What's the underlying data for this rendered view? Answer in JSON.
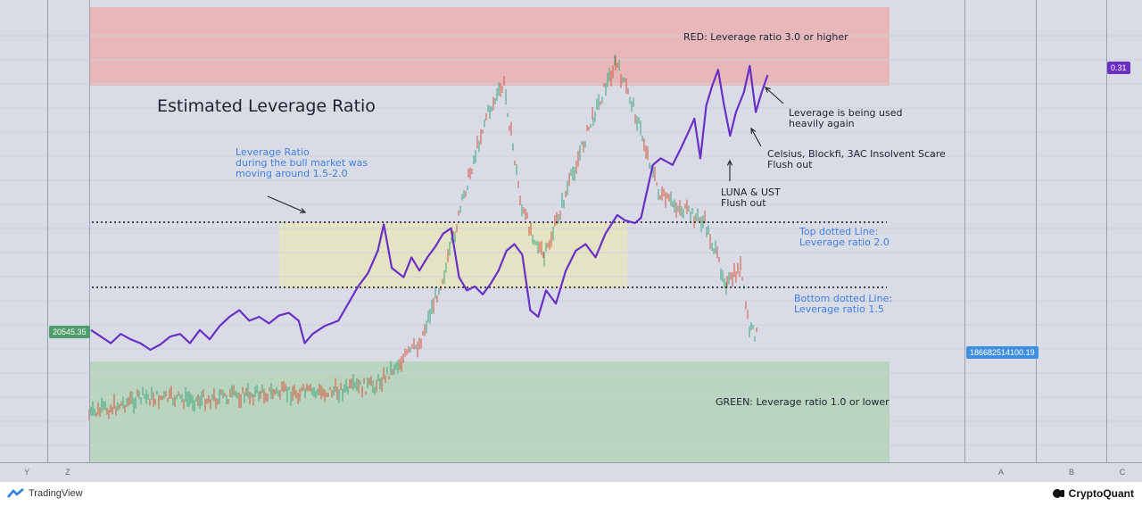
{
  "chart_data": {
    "type": "line",
    "title": "Estimated Leverage Ratio",
    "series": [
      {
        "color": "#6a2fc4",
        "points": [
          [
            0,
            1.15
          ],
          [
            5,
            1.1
          ],
          [
            10,
            1.05
          ],
          [
            15,
            1.12
          ],
          [
            20,
            1.08
          ],
          [
            25,
            1.05
          ],
          [
            30,
            1.0
          ],
          [
            35,
            1.04
          ],
          [
            40,
            1.1
          ],
          [
            45,
            1.12
          ],
          [
            50,
            1.05
          ],
          [
            55,
            1.15
          ],
          [
            60,
            1.08
          ],
          [
            65,
            1.18
          ],
          [
            70,
            1.25
          ],
          [
            75,
            1.3
          ],
          [
            80,
            1.22
          ],
          [
            85,
            1.25
          ],
          [
            90,
            1.2
          ],
          [
            95,
            1.26
          ],
          [
            100,
            1.28
          ],
          [
            105,
            1.22
          ],
          [
            108,
            1.05
          ],
          [
            112,
            1.12
          ],
          [
            118,
            1.18
          ],
          [
            125,
            1.22
          ],
          [
            130,
            1.35
          ],
          [
            135,
            1.48
          ],
          [
            140,
            1.58
          ],
          [
            145,
            1.75
          ],
          [
            148,
            1.95
          ],
          [
            152,
            1.62
          ],
          [
            158,
            1.55
          ],
          [
            162,
            1.7
          ],
          [
            166,
            1.6
          ],
          [
            170,
            1.7
          ],
          [
            174,
            1.78
          ],
          [
            178,
            1.88
          ],
          [
            182,
            1.92
          ],
          [
            186,
            1.55
          ],
          [
            190,
            1.45
          ],
          [
            194,
            1.48
          ],
          [
            198,
            1.42
          ],
          [
            202,
            1.5
          ],
          [
            206,
            1.6
          ],
          [
            210,
            1.75
          ],
          [
            214,
            1.8
          ],
          [
            218,
            1.72
          ],
          [
            222,
            1.3
          ],
          [
            226,
            1.25
          ],
          [
            230,
            1.45
          ],
          [
            235,
            1.35
          ],
          [
            240,
            1.6
          ],
          [
            245,
            1.75
          ],
          [
            250,
            1.8
          ],
          [
            255,
            1.7
          ],
          [
            260,
            1.88
          ],
          [
            266,
            2.02
          ],
          [
            270,
            1.98
          ],
          [
            275,
            1.96
          ],
          [
            278,
            2.0
          ],
          [
            284,
            2.4
          ],
          [
            288,
            2.45
          ],
          [
            294,
            2.4
          ],
          [
            298,
            2.52
          ],
          [
            302,
            2.65
          ],
          [
            305,
            2.75
          ],
          [
            308,
            2.45
          ],
          [
            311,
            2.85
          ],
          [
            314,
            3.0
          ],
          [
            317,
            3.12
          ],
          [
            320,
            2.85
          ],
          [
            323,
            2.62
          ],
          [
            326,
            2.8
          ],
          [
            330,
            2.95
          ],
          [
            333,
            3.15
          ],
          [
            336,
            2.8
          ],
          [
            339,
            2.95
          ],
          [
            342,
            3.08
          ]
        ]
      }
    ],
    "ylim": [
      0.6,
      3.4
    ],
    "xlim": [
      0,
      400
    ],
    "reference_lines": [
      {
        "y": 2.0,
        "label": "Top dotted Line:\nLeverage ratio 2.0"
      },
      {
        "y": 1.5,
        "label": "Bottom dotted Line:\nLeverage ratio 1.5"
      }
    ],
    "zones": [
      {
        "label": "RED: Leverage ratio 3.0 or higher",
        "from": 3.0,
        "to": 3.4,
        "color": "#e8b7b9"
      },
      {
        "label": "GREEN: Leverage ratio 1.0 or lower",
        "from": 0.6,
        "to": 1.0,
        "color": "#b9d5bf"
      }
    ]
  },
  "annotations": {
    "bull_market": "Leverage Ratio\nduring the bull market was\nmoving around 1.5-2.0",
    "heavy_use": "Leverage is being used\nheavily again",
    "celsius": "Celsius, Blockfi, 3AC Insolvent Scare\nFlush out",
    "luna": "LUNA & UST\nFlush out"
  },
  "badges": {
    "price": "20545.35",
    "leverage_value": "0.31",
    "reserve": "186682514100.19"
  },
  "scale_labels": [
    "Y",
    "Z",
    "A",
    "B",
    "C"
  ],
  "footer": {
    "tradingview": "TradingView",
    "cryptoquant": "CryptoQuant"
  },
  "colors": {
    "leverage_line": "#6a2fc4",
    "price_up": "#3aa57a",
    "price_down": "#d2553a",
    "yellow_band": "#e4e3c4",
    "annotation_blue": "#3f7fe0"
  }
}
